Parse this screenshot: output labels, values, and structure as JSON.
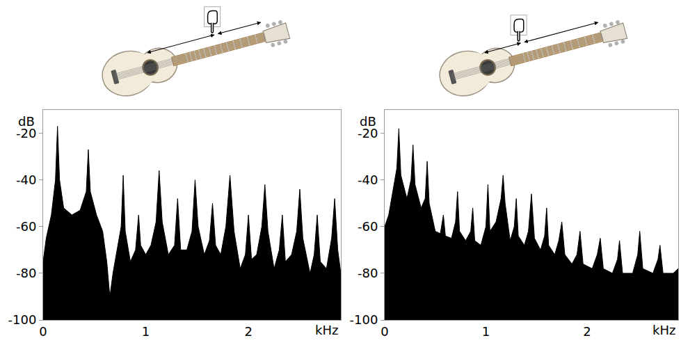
{
  "chart_data": [
    {
      "type": "area",
      "color": "#000000",
      "x_label": "kHz",
      "y_label": "dB",
      "xlim": [
        0,
        2.9
      ],
      "ylim": [
        -100,
        -10
      ],
      "xticks": [
        0,
        1,
        2
      ],
      "yticks": [
        -100,
        -80,
        -60,
        -40,
        -20
      ],
      "x": [
        0,
        0.03,
        0.08,
        0.12,
        0.14,
        0.16,
        0.2,
        0.28,
        0.36,
        0.42,
        0.44,
        0.46,
        0.52,
        0.58,
        0.62,
        0.65,
        0.68,
        0.72,
        0.76,
        0.78,
        0.8,
        0.85,
        0.9,
        0.93,
        0.95,
        1.0,
        1.05,
        1.1,
        1.13,
        1.16,
        1.22,
        1.28,
        1.31,
        1.34,
        1.4,
        1.45,
        1.48,
        1.51,
        1.57,
        1.62,
        1.65,
        1.68,
        1.73,
        1.78,
        1.82,
        1.86,
        1.92,
        1.97,
        2.0,
        2.03,
        2.08,
        2.13,
        2.16,
        2.19,
        2.25,
        2.3,
        2.33,
        2.36,
        2.42,
        2.47,
        2.5,
        2.53,
        2.6,
        2.64,
        2.67,
        2.7,
        2.76,
        2.81,
        2.84,
        2.87,
        2.9
      ],
      "values": [
        -75,
        -65,
        -55,
        -40,
        -17,
        -40,
        -52,
        -55,
        -53,
        -45,
        -27,
        -45,
        -55,
        -62,
        -75,
        -90,
        -80,
        -70,
        -60,
        -38,
        -62,
        -75,
        -70,
        -55,
        -68,
        -72,
        -68,
        -58,
        -36,
        -58,
        -72,
        -68,
        -48,
        -70,
        -70,
        -62,
        -40,
        -60,
        -72,
        -66,
        -50,
        -68,
        -72,
        -60,
        -38,
        -62,
        -78,
        -72,
        -55,
        -74,
        -72,
        -60,
        -42,
        -62,
        -78,
        -70,
        -55,
        -75,
        -72,
        -62,
        -44,
        -65,
        -80,
        -72,
        -55,
        -75,
        -78,
        -65,
        -48,
        -70,
        -80
      ]
    },
    {
      "type": "area",
      "color": "#000000",
      "x_label": "kHz",
      "y_label": "dB",
      "xlim": [
        0,
        2.9
      ],
      "ylim": [
        -100,
        -10
      ],
      "xticks": [
        0,
        1,
        2
      ],
      "yticks": [
        -100,
        -80,
        -60,
        -40,
        -20
      ],
      "x": [
        0,
        0.04,
        0.08,
        0.12,
        0.14,
        0.16,
        0.22,
        0.26,
        0.28,
        0.3,
        0.36,
        0.4,
        0.42,
        0.44,
        0.5,
        0.55,
        0.58,
        0.6,
        0.66,
        0.7,
        0.72,
        0.74,
        0.8,
        0.85,
        0.87,
        0.89,
        0.95,
        1.0,
        1.02,
        1.04,
        1.1,
        1.15,
        1.17,
        1.19,
        1.24,
        1.28,
        1.3,
        1.32,
        1.38,
        1.42,
        1.45,
        1.48,
        1.54,
        1.58,
        1.6,
        1.62,
        1.68,
        1.72,
        1.75,
        1.78,
        1.85,
        1.9,
        1.93,
        1.96,
        2.05,
        2.1,
        2.13,
        2.16,
        2.25,
        2.3,
        2.32,
        2.35,
        2.45,
        2.5,
        2.52,
        2.55,
        2.65,
        2.7,
        2.72,
        2.75,
        2.85,
        2.9
      ],
      "values": [
        -60,
        -55,
        -45,
        -35,
        -18,
        -38,
        -48,
        -40,
        -25,
        -42,
        -52,
        -48,
        -32,
        -50,
        -62,
        -63,
        -55,
        -64,
        -65,
        -58,
        -45,
        -62,
        -66,
        -62,
        -52,
        -66,
        -68,
        -60,
        -42,
        -62,
        -58,
        -48,
        -38,
        -50,
        -66,
        -60,
        -48,
        -64,
        -68,
        -62,
        -46,
        -65,
        -70,
        -64,
        -52,
        -68,
        -72,
        -66,
        -58,
        -72,
        -76,
        -72,
        -62,
        -76,
        -78,
        -72,
        -65,
        -78,
        -80,
        -74,
        -66,
        -80,
        -80,
        -72,
        -62,
        -78,
        -80,
        -74,
        -68,
        -80,
        -80,
        -78
      ]
    }
  ]
}
